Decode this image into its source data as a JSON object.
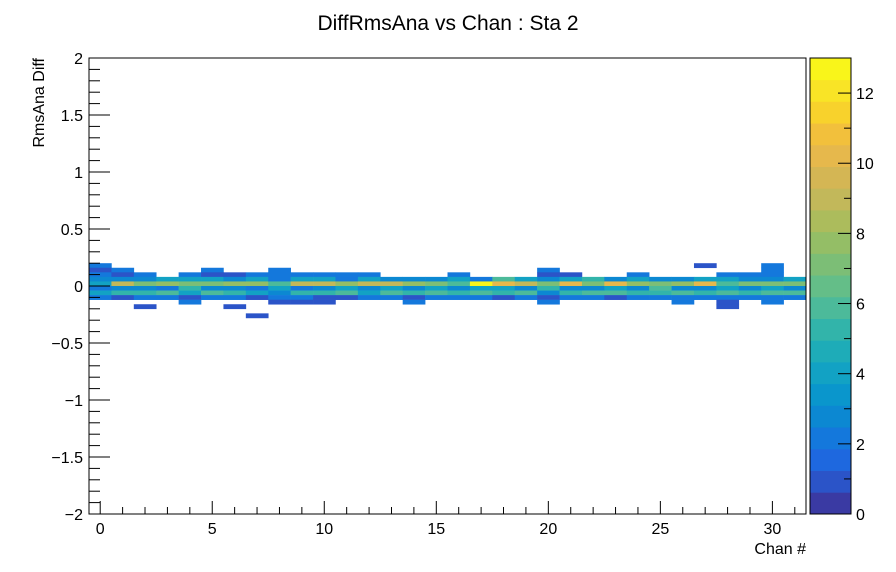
{
  "chart_data": {
    "type": "heatmap",
    "title": "DiffRmsAna vs Chan : Sta 2",
    "xlabel": "Chan #",
    "ylabel": "RmsAna Diff",
    "xlim": [
      -0.5,
      31.5
    ],
    "ylim": [
      -2,
      2
    ],
    "x_ticks": [
      0,
      5,
      10,
      15,
      20,
      25,
      30
    ],
    "x_tick_labels": [
      "0",
      "5",
      "10",
      "15",
      "20",
      "25",
      "30"
    ],
    "y_ticks": [
      -2,
      -1.5,
      -1,
      -0.5,
      0,
      0.5,
      1,
      1.5,
      2
    ],
    "y_tick_labels": [
      "−2",
      "−1.5",
      "−1",
      "−0.5",
      "0",
      "0.5",
      "1",
      "1.5",
      "2"
    ],
    "colorbar": {
      "zlim": [
        0,
        13
      ],
      "ticks": [
        0,
        2,
        4,
        6,
        8,
        10,
        12
      ],
      "tick_labels": [
        "0",
        "2",
        "4",
        "6",
        "8",
        "10",
        "12"
      ],
      "colors": [
        "#3a3aa3",
        "#2b54c8",
        "#1e68df",
        "#1478dc",
        "#0c88d2",
        "#0a96cc",
        "#12a2c4",
        "#1eacb8",
        "#32b4aa",
        "#4cba9a",
        "#64be88",
        "#7cbe76",
        "#94be66",
        "#acbc5c",
        "#c2b85a",
        "#d4b654",
        "#e6b84c",
        "#f2c03c",
        "#f8d22c",
        "#f9e426",
        "#f9f51a"
      ]
    },
    "bin_height": 0.04,
    "y_bin_centers": [
      0.18,
      0.14,
      0.1,
      0.06,
      0.02,
      -0.02,
      -0.06,
      -0.1,
      -0.14,
      -0.18,
      -0.22,
      -0.26
    ],
    "counts_by_channel": [
      [
        2,
        1,
        2,
        3,
        4,
        2,
        4,
        2,
        0,
        0,
        0,
        0
      ],
      [
        0,
        2,
        1,
        3,
        9,
        3,
        5,
        1,
        0,
        0,
        0,
        0
      ],
      [
        0,
        0,
        2,
        3,
        7,
        3,
        5,
        2,
        0,
        1,
        0,
        0
      ],
      [
        0,
        0,
        0,
        4,
        8,
        2,
        6,
        2,
        0,
        0,
        0,
        0
      ],
      [
        0,
        0,
        2,
        4,
        7,
        5,
        4,
        1,
        2,
        0,
        0,
        0
      ],
      [
        0,
        2,
        1,
        4,
        7,
        3,
        6,
        2,
        0,
        0,
        0,
        0
      ],
      [
        0,
        0,
        1,
        3,
        8,
        3,
        5,
        2,
        0,
        1,
        0,
        0
      ],
      [
        0,
        0,
        2,
        4,
        8,
        2,
        4,
        1,
        0,
        0,
        0,
        1
      ],
      [
        0,
        2,
        2,
        2,
        6,
        4,
        3,
        2,
        1,
        0,
        0,
        0
      ],
      [
        0,
        0,
        2,
        4,
        9,
        2,
        5,
        2,
        1,
        0,
        0,
        0
      ],
      [
        0,
        0,
        2,
        4,
        9,
        3,
        5,
        1,
        1,
        0,
        0,
        0
      ],
      [
        0,
        0,
        2,
        2,
        8,
        4,
        6,
        1,
        0,
        0,
        0,
        0
      ],
      [
        0,
        0,
        2,
        4,
        9,
        3,
        4,
        2,
        0,
        0,
        0,
        0
      ],
      [
        0,
        0,
        0,
        3,
        9,
        4,
        6,
        2,
        0,
        0,
        0,
        0
      ],
      [
        0,
        0,
        0,
        3,
        8,
        3,
        5,
        1,
        2,
        0,
        0,
        0
      ],
      [
        0,
        0,
        0,
        3,
        7,
        4,
        6,
        2,
        0,
        0,
        0,
        0
      ],
      [
        0,
        0,
        2,
        4,
        6,
        3,
        5,
        2,
        0,
        0,
        0,
        0
      ],
      [
        0,
        0,
        0,
        2,
        13,
        4,
        6,
        2,
        0,
        0,
        0,
        0
      ],
      [
        0,
        0,
        0,
        6,
        10,
        4,
        5,
        1,
        0,
        0,
        0,
        0
      ],
      [
        0,
        0,
        0,
        4,
        9,
        3,
        6,
        2,
        0,
        0,
        0,
        0
      ],
      [
        0,
        2,
        1,
        3,
        7,
        5,
        3,
        1,
        2,
        0,
        0,
        0
      ],
      [
        0,
        0,
        1,
        4,
        10,
        3,
        5,
        2,
        0,
        0,
        0,
        0
      ],
      [
        0,
        0,
        0,
        5,
        7,
        3,
        6,
        2,
        0,
        0,
        0,
        0
      ],
      [
        0,
        0,
        0,
        3,
        10,
        4,
        6,
        1,
        0,
        0,
        0,
        0
      ],
      [
        0,
        0,
        2,
        4,
        8,
        3,
        5,
        2,
        0,
        0,
        0,
        0
      ],
      [
        0,
        0,
        0,
        3,
        7,
        6,
        5,
        2,
        0,
        0,
        0,
        0
      ],
      [
        0,
        0,
        0,
        3,
        8,
        3,
        6,
        2,
        2,
        0,
        0,
        0
      ],
      [
        1,
        0,
        0,
        4,
        10,
        3,
        5,
        2,
        0,
        0,
        0,
        0
      ],
      [
        0,
        0,
        2,
        4,
        6,
        4,
        6,
        2,
        1,
        1,
        0,
        0
      ],
      [
        0,
        0,
        2,
        3,
        7,
        3,
        5,
        2,
        0,
        0,
        0,
        0
      ],
      [
        2,
        2,
        2,
        3,
        7,
        4,
        6,
        2,
        2,
        0,
        0,
        0
      ],
      [
        0,
        0,
        0,
        4,
        7,
        3,
        6,
        2,
        0,
        0,
        0,
        0
      ]
    ]
  }
}
